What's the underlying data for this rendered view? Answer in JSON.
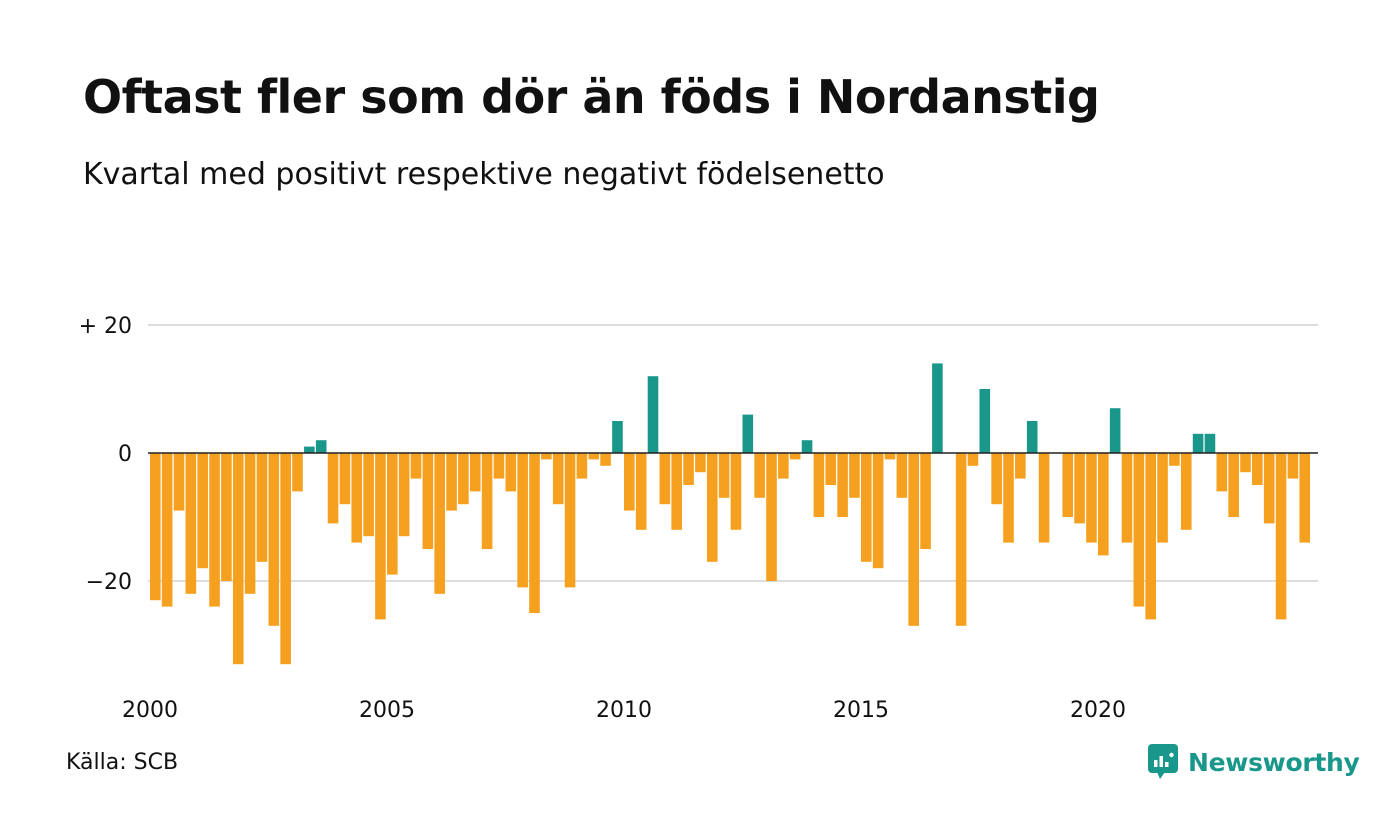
{
  "title": "Oftast fler som dör än föds i Nordanstig",
  "subtitle": "Kvartal med positivt respektive negativt födelsenetto",
  "source": "Källa: SCB",
  "brand": "Newsworthy",
  "colors": {
    "negative": "#F5A01E",
    "positive": "#1A978B",
    "brand": "#1A978B",
    "grid": "#DDDDDD",
    "baseline": "#222222",
    "text": "#111111"
  },
  "chart_data": {
    "type": "bar",
    "title": "Oftast fler som dör än föds i Nordanstig",
    "subtitle": "Kvartal med positivt respektive negativt födelsenetto",
    "xlabel": "",
    "ylabel": "",
    "x_range": [
      2000,
      2024.75
    ],
    "ylim": [
      -34,
      20
    ],
    "y_ticks": [
      {
        "value": 20,
        "label": "+ 20"
      },
      {
        "value": 0,
        "label": "0"
      },
      {
        "value": -20,
        "label": "−20"
      }
    ],
    "x_ticks": [
      {
        "value": 2000,
        "label": "2000"
      },
      {
        "value": 2005,
        "label": "2005"
      },
      {
        "value": 2010,
        "label": "2010"
      },
      {
        "value": 2015,
        "label": "2015"
      },
      {
        "value": 2020,
        "label": "2020"
      }
    ],
    "grid": true,
    "legend": "none",
    "quarters_start": "2000 Q1",
    "values": [
      -23,
      -24,
      -9,
      -22,
      -18,
      -24,
      -20,
      -33,
      -22,
      -17,
      -27,
      -33,
      -6,
      1,
      2,
      -11,
      -8,
      -14,
      -13,
      -26,
      -19,
      -13,
      -4,
      -15,
      -22,
      -9,
      -8,
      -6,
      -15,
      -4,
      -6,
      -21,
      -25,
      -1,
      -8,
      -21,
      -4,
      -1,
      -2,
      5,
      -9,
      -12,
      12,
      -8,
      -12,
      -5,
      -3,
      -17,
      -7,
      -12,
      6,
      -7,
      -20,
      -4,
      -1,
      2,
      -10,
      -5,
      -10,
      -7,
      -17,
      -18,
      -1,
      -7,
      -27,
      -15,
      14,
      0,
      -27,
      -2,
      10,
      -8,
      -14,
      -4,
      5,
      -14,
      0,
      -10,
      -11,
      -14,
      -16,
      7,
      -14,
      -24,
      -26,
      -14,
      -2,
      -12,
      3,
      3,
      -6,
      -10,
      -3,
      -5,
      -11,
      -26,
      -4,
      -14
    ]
  }
}
